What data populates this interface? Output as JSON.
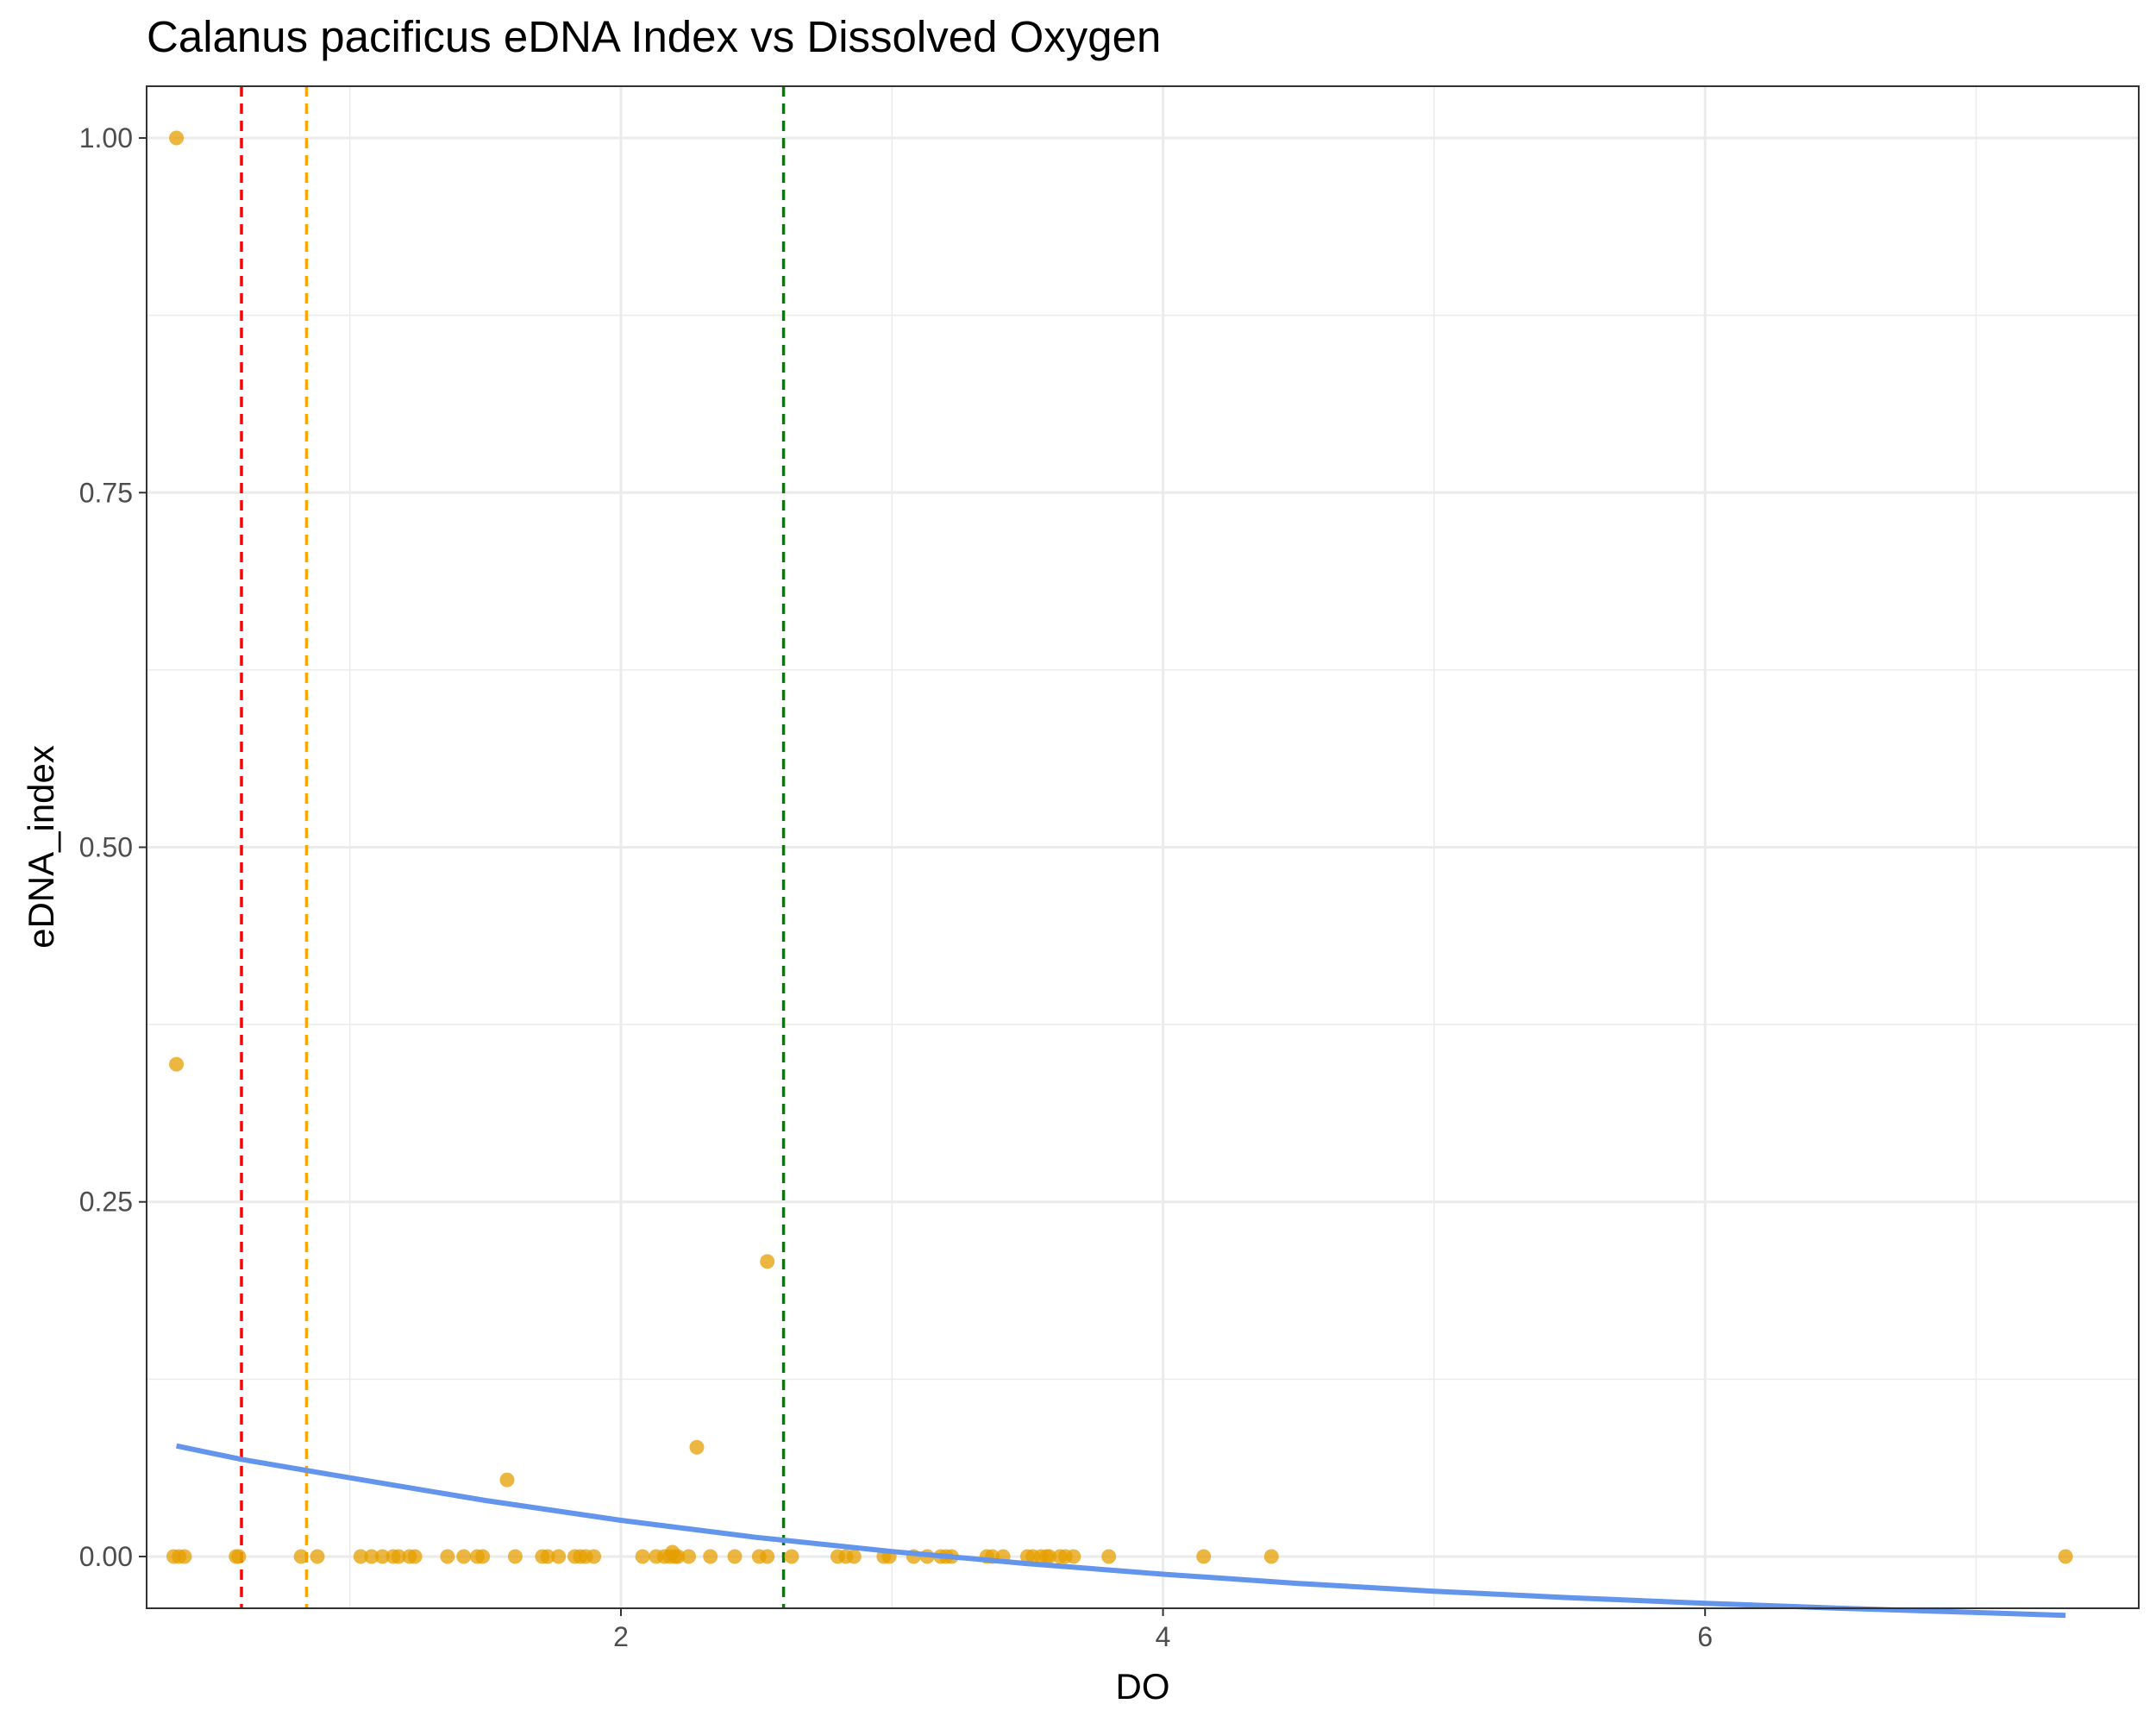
{
  "chart_data": {
    "type": "scatter",
    "title": "Calanus pacificus eDNA Index vs Dissolved Oxygen",
    "xlabel": "DO",
    "ylabel": "eDNA_index",
    "xlim": [
      0.25,
      7.6
    ],
    "ylim": [
      -0.0365,
      1.0365
    ],
    "x_ticks": [
      2,
      4,
      6
    ],
    "x_tick_labels": [
      "2",
      "4",
      "6"
    ],
    "x_minor_ticks": [
      1,
      3,
      5,
      7
    ],
    "y_ticks": [
      0,
      0.25,
      0.5,
      0.75,
      1.0
    ],
    "y_tick_labels": [
      "0.00",
      "0.25",
      "0.50",
      "0.75",
      "1.00"
    ],
    "y_minor_ticks": [
      0.125,
      0.375,
      0.625,
      0.875
    ],
    "grid": true,
    "legend": "none",
    "point_color": "#E69F00",
    "fit_color": "#6495ED",
    "points": [
      [
        0.36,
        1.0
      ],
      [
        0.36,
        0.347
      ],
      [
        0.35,
        0.0
      ],
      [
        0.37,
        0.0
      ],
      [
        0.39,
        0.0
      ],
      [
        0.58,
        0.0
      ],
      [
        0.59,
        0.0
      ],
      [
        0.82,
        0.0
      ],
      [
        0.88,
        0.0
      ],
      [
        1.04,
        0.0
      ],
      [
        1.08,
        0.0
      ],
      [
        1.12,
        0.0
      ],
      [
        1.16,
        0.0
      ],
      [
        1.18,
        0.0
      ],
      [
        1.22,
        0.0
      ],
      [
        1.24,
        0.0
      ],
      [
        1.36,
        0.0
      ],
      [
        1.42,
        0.0
      ],
      [
        1.47,
        0.0
      ],
      [
        1.49,
        0.0
      ],
      [
        1.58,
        0.054
      ],
      [
        1.61,
        0.0
      ],
      [
        1.71,
        0.0
      ],
      [
        1.73,
        0.0
      ],
      [
        1.77,
        0.0
      ],
      [
        1.83,
        0.0
      ],
      [
        1.85,
        0.0
      ],
      [
        1.87,
        0.0
      ],
      [
        1.9,
        0.0
      ],
      [
        2.08,
        0.0
      ],
      [
        2.13,
        0.0
      ],
      [
        2.16,
        0.0
      ],
      [
        2.18,
        0.0
      ],
      [
        2.19,
        0.003
      ],
      [
        2.2,
        0.0
      ],
      [
        2.21,
        0.0
      ],
      [
        2.25,
        0.0
      ],
      [
        2.28,
        0.077
      ],
      [
        2.33,
        0.0
      ],
      [
        2.42,
        0.0
      ],
      [
        2.51,
        0.0
      ],
      [
        2.54,
        0.0
      ],
      [
        2.54,
        0.208
      ],
      [
        2.63,
        0.0
      ],
      [
        2.8,
        0.0
      ],
      [
        2.83,
        0.0
      ],
      [
        2.86,
        0.0
      ],
      [
        2.97,
        0.0
      ],
      [
        2.99,
        0.0
      ],
      [
        3.08,
        0.0
      ],
      [
        3.13,
        0.0
      ],
      [
        3.18,
        0.0
      ],
      [
        3.2,
        0.0
      ],
      [
        3.22,
        0.0
      ],
      [
        3.35,
        0.0
      ],
      [
        3.37,
        0.0
      ],
      [
        3.41,
        0.0
      ],
      [
        3.5,
        0.0
      ],
      [
        3.52,
        0.0
      ],
      [
        3.55,
        0.0
      ],
      [
        3.57,
        0.0
      ],
      [
        3.58,
        0.0
      ],
      [
        3.62,
        0.0
      ],
      [
        3.64,
        0.0
      ],
      [
        3.67,
        0.0
      ],
      [
        3.8,
        0.0
      ],
      [
        4.15,
        0.0
      ],
      [
        4.4,
        0.0
      ],
      [
        7.33,
        0.0
      ]
    ],
    "fit_line": [
      [
        0.36,
        0.078
      ],
      [
        0.6,
        0.0685
      ],
      [
        1.0,
        0.0555
      ],
      [
        1.5,
        0.0395
      ],
      [
        2.0,
        0.0255
      ],
      [
        2.5,
        0.0135
      ],
      [
        3.0,
        0.0035
      ],
      [
        3.5,
        -0.005
      ],
      [
        4.0,
        -0.0125
      ],
      [
        4.5,
        -0.019
      ],
      [
        5.0,
        -0.0245
      ],
      [
        5.5,
        -0.029
      ],
      [
        6.0,
        -0.033
      ],
      [
        6.5,
        -0.0365
      ],
      [
        7.0,
        -0.0395
      ],
      [
        7.33,
        -0.0415
      ]
    ],
    "reference_lines": [
      {
        "x": 0.6,
        "color": "#FF0000"
      },
      {
        "x": 0.84,
        "color": "#FFA500"
      },
      {
        "x": 2.6,
        "color": "#008000"
      }
    ]
  }
}
